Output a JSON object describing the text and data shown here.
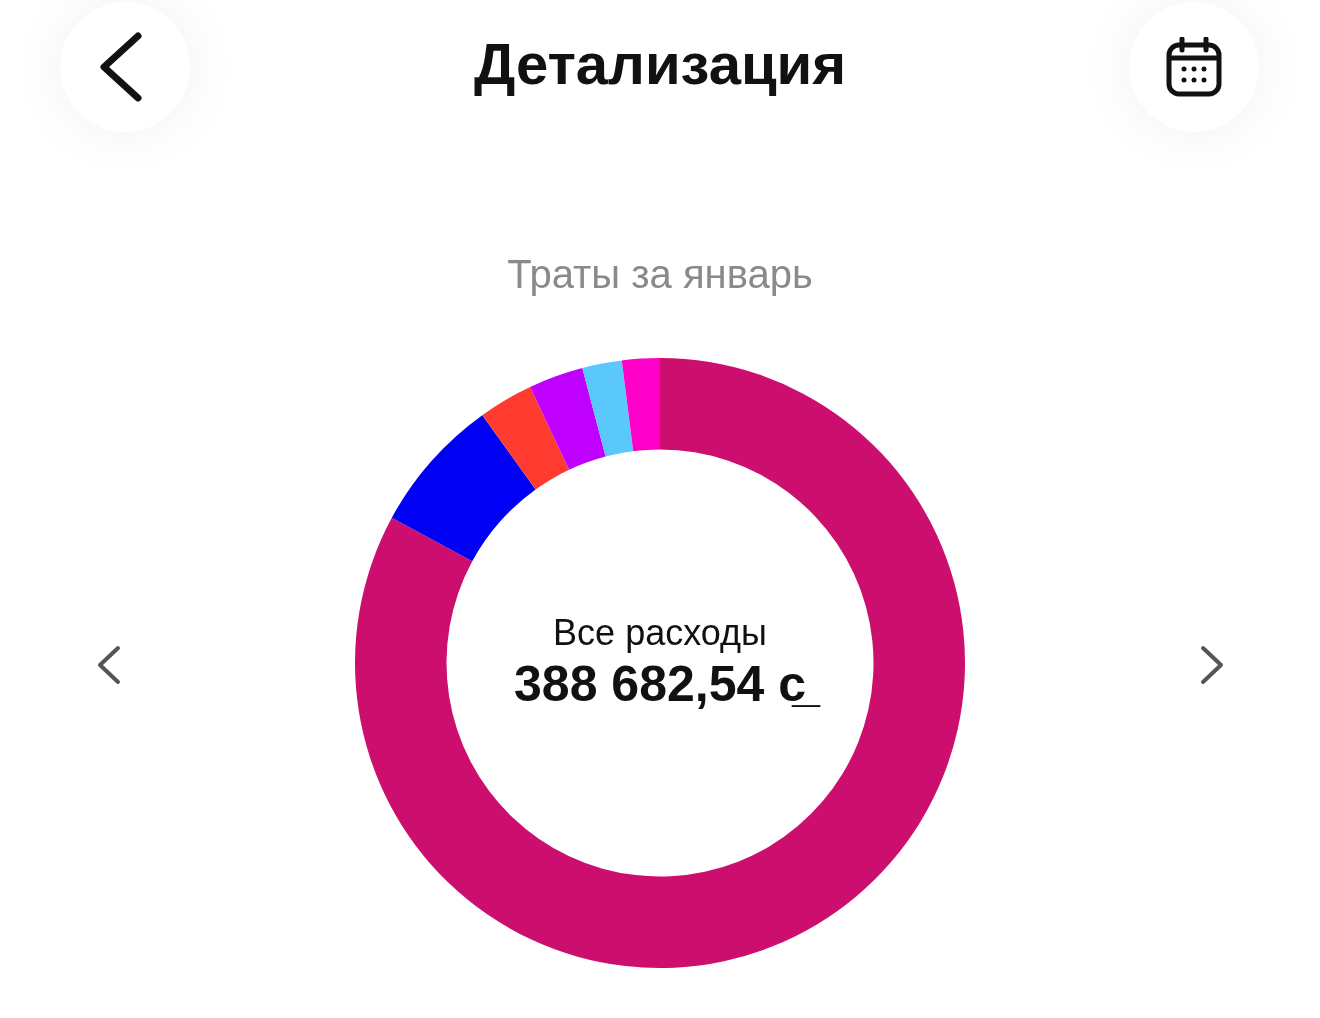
{
  "chart_data": {
    "type": "donut",
    "title": "Детализация",
    "subtitle": "Траты за январь",
    "categories": [
      null,
      null,
      null,
      null,
      null,
      null
    ],
    "values": [
      82.9,
      7.2,
      2.9,
      2.9,
      2.1,
      2.0
    ],
    "colors": [
      "#cc0e6e",
      "#0000f5",
      "#ff3b30",
      "#bf00ff",
      "#5ac8fa",
      "#ff00c8"
    ],
    "annotations": [
      "Все расходы",
      "388 682,54 с̲"
    ],
    "legend": false
  }
}
